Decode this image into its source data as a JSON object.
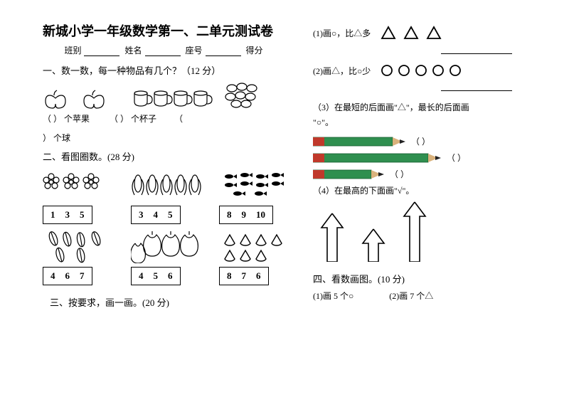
{
  "title": "新城小学一年级数学第一、二单元测试卷",
  "info": {
    "class_label": "班别",
    "name_label": "姓名",
    "seat_label": "座号",
    "score_label": "得分"
  },
  "sectionA": {
    "title": "一、数一数，每一种物品有几个？（12 分）"
  },
  "labels": {
    "apple": "个苹果",
    "cup": "个杯子",
    "ball": "个球",
    "circle_char": "\"○\"。"
  },
  "paren": "（        ）",
  "parenClose": "）",
  "sectionB": {
    "title": "二、看图圈数。(28 分)"
  },
  "boxes": {
    "r1": [
      [
        "1",
        "3",
        "5"
      ],
      [
        "3",
        "4",
        "5"
      ],
      [
        "8",
        "9",
        "10"
      ]
    ],
    "r2": [
      [
        "4",
        "6",
        "7"
      ],
      [
        "4",
        "5",
        "6"
      ],
      [
        "8",
        "7",
        "6"
      ]
    ]
  },
  "sectionC": {
    "title": "三、按要求，画一画。(20 分)"
  },
  "rightQ": {
    "q1": "(1)画○，比△多",
    "q2": "(2)画△，比○少",
    "q3": "（3）在最短的后面画\"△\"，最长的后面画",
    "q4": "（4）在最高的下面画\"√\"。"
  },
  "pencils": {
    "colors": {
      "body": "#2f8f4f",
      "band": "#c0392b",
      "tip_wood": "#d9b27c",
      "tip_lead": "#222"
    },
    "lengths": [
      130,
      180,
      100
    ]
  },
  "arrows": {
    "heights": [
      70,
      48,
      86
    ]
  },
  "sectionD": {
    "title": "四、看数画图。(10 分)",
    "q1": "(1)画 5 个○",
    "q2": "(2)画 7 个△"
  },
  "shapes": {
    "triangle_count": 3,
    "circle_count": 5
  },
  "colors": {
    "text": "#000000",
    "bg": "#ffffff"
  }
}
